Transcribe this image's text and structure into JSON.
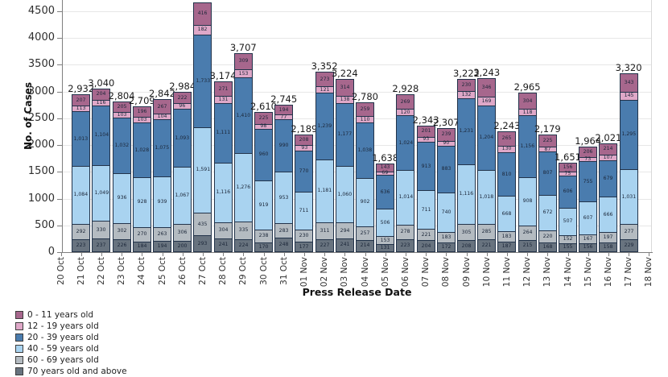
{
  "y_axis": {
    "title": "No. of Cases",
    "tick_values": [
      0,
      500,
      1000,
      1500,
      2000,
      2500,
      3000,
      3500,
      4000,
      4500
    ],
    "max_value": 4500
  },
  "x_axis": {
    "title": "Press Release Date"
  },
  "legend": {
    "position": "bottom-left",
    "items": [
      {
        "label": "0 - 11 years old",
        "color": "#a7678d"
      },
      {
        "label": "12 - 19 years old",
        "color": "#dfa8c8"
      },
      {
        "label": "20 - 39 years old",
        "color": "#4a7cae"
      },
      {
        "label": "40 - 59 years old",
        "color": "#a9d3f0"
      },
      {
        "label": "60 - 69 years old",
        "color": "#b4bbc1"
      },
      {
        "label": "70 years old and above",
        "color": "#68737f"
      }
    ]
  },
  "chart_data": {
    "type": "bar",
    "stacked": true,
    "stack_order": "bottom_to_top",
    "title": "",
    "xlabel": "Press Release Date",
    "ylabel": "No. of Cases",
    "ylim": [
      0,
      4500
    ],
    "grid": "horizontal",
    "legend_position": "bottom-left",
    "categories": [
      "20 Oct",
      "21 Oct",
      "22 Oct",
      "23 Oct",
      "24 Oct",
      "25 Oct",
      "26 Oct",
      "27 Oct",
      "28 Oct",
      "29 Oct",
      "30 Oct",
      "31 Oct",
      "01 Nov",
      "02 Nov",
      "03 Nov",
      "04 Nov",
      "05 Nov",
      "06 Nov",
      "07 Nov",
      "08 Nov",
      "09 Nov",
      "10 Nov",
      "11 Nov",
      "12 Nov",
      "13 Nov",
      "14 Nov",
      "15 Nov",
      "16 Nov",
      "17 Nov",
      "18 Nov"
    ],
    "series": [
      {
        "name": "70 years old and above",
        "color": "#68737f",
        "values": [
          null,
          223,
          237,
          226,
          184,
          194,
          200,
          293,
          241,
          224,
          170,
          248,
          177,
          227,
          241,
          214,
          131,
          223,
          204,
          172,
          208,
          221,
          187,
          215,
          168,
          155,
          156,
          158,
          229,
          null
        ]
      },
      {
        "name": "60 - 69 years old",
        "color": "#b4bbc1",
        "values": [
          null,
          292,
          330,
          302,
          270,
          263,
          306,
          435,
          304,
          335,
          238,
          283,
          230,
          311,
          294,
          257,
          153,
          278,
          221,
          183,
          305,
          285,
          183,
          264,
          220,
          152,
          167,
          197,
          277,
          null
        ]
      },
      {
        "name": "40 - 59 years old",
        "color": "#a9d3f0",
        "values": [
          null,
          1084,
          1049,
          936,
          928,
          939,
          1067,
          1591,
          1116,
          1276,
          919,
          953,
          711,
          1181,
          1060,
          902,
          506,
          1014,
          711,
          740,
          1116,
          1018,
          668,
          908,
          672,
          507,
          607,
          666,
          1031,
          null
        ]
      },
      {
        "name": "20 - 39 years old",
        "color": "#4a7cae",
        "values": [
          null,
          1013,
          1104,
          1032,
          1028,
          1075,
          1093,
          1733,
          1111,
          1410,
          960,
          990,
          770,
          1239,
          1177,
          1038,
          636,
          1024,
          913,
          883,
          1231,
          1204,
          810,
          1156,
          807,
          606,
          755,
          679,
          1295,
          null
        ]
      },
      {
        "name": "12 - 19 years old",
        "color": "#dfa8c8",
        "values": [
          null,
          113,
          116,
          103,
          103,
          104,
          96,
          182,
          131,
          153,
          98,
          77,
          93,
          121,
          138,
          110,
          69,
          120,
          93,
          90,
          132,
          169,
          130,
          118,
          87,
          75,
          73,
          107,
          145,
          null
        ]
      },
      {
        "name": "0 - 11 years old",
        "color": "#a7678d",
        "values": [
          null,
          207,
          204,
          205,
          196,
          267,
          222,
          416,
          271,
          309,
          225,
          194,
          208,
          273,
          314,
          259,
          143,
          269,
          201,
          239,
          230,
          346,
          265,
          304,
          225,
          156,
          206,
          214,
          343,
          null
        ]
      }
    ],
    "totals_labels": [
      null,
      "2,932",
      "3,040",
      "2,804",
      "2,709",
      "2,842",
      "2,984",
      null,
      "3,174",
      "3,707",
      "2,610",
      "2,745",
      "2,189",
      "3,352",
      "3,224",
      "2,780",
      "1,638",
      "2,928",
      "2,343",
      "2,307",
      "3,222",
      "3,243",
      "2,243",
      "2,965",
      "2,179",
      "1,651",
      "1,964",
      "2,021",
      "3,320",
      null
    ]
  }
}
